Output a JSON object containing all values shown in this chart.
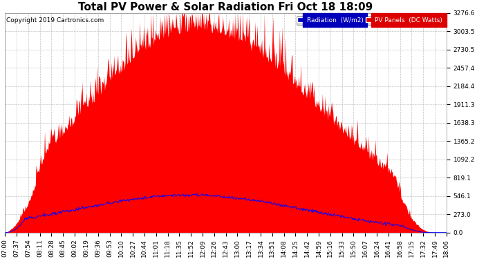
{
  "title": "Total PV Power & Solar Radiation Fri Oct 18 18:09",
  "copyright": "Copyright 2019 Cartronics.com",
  "yticks": [
    0.0,
    273.0,
    546.1,
    819.1,
    1092.2,
    1365.2,
    1638.3,
    1911.3,
    2184.4,
    2457.4,
    2730.5,
    3003.5,
    3276.6
  ],
  "ymax": 3276.6,
  "legend_radiation_label": "Radiation  (W/m2)",
  "legend_pv_label": "PV Panels  (DC Watts)",
  "legend_radiation_color": "#0000bb",
  "legend_pv_color": "#dd0000",
  "background_color": "#ffffff",
  "grid_color": "#aaaaaa",
  "fill_pv_color": "#ff0000",
  "line_radiation_color": "#0000ff",
  "title_fontsize": 11,
  "copyright_fontsize": 6.5,
  "tick_fontsize": 6.5,
  "x_labels": [
    "07:00",
    "07:37",
    "07:54",
    "08:11",
    "08:28",
    "08:45",
    "09:02",
    "09:19",
    "09:36",
    "09:53",
    "10:10",
    "10:27",
    "10:44",
    "11:01",
    "11:18",
    "11:35",
    "11:52",
    "12:09",
    "12:26",
    "12:43",
    "13:00",
    "13:17",
    "13:34",
    "13:51",
    "14:08",
    "14:25",
    "14:42",
    "14:59",
    "15:16",
    "15:33",
    "15:50",
    "16:07",
    "16:24",
    "16:41",
    "16:58",
    "17:15",
    "17:32",
    "17:49",
    "18:06"
  ]
}
